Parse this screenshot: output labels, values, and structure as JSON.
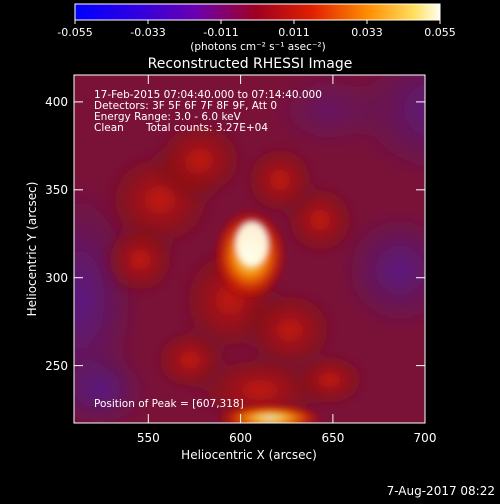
{
  "colorbar": {
    "ticks": [
      "-0.055",
      "-0.033",
      "-0.011",
      "0.011",
      "0.033",
      "0.055"
    ],
    "unit_label": "(photons cm⁻² s⁻¹ asec⁻²)"
  },
  "chart_data": {
    "type": "heatmap",
    "title": "Reconstructed RHESSI Image",
    "xlabel": "Heliocentric X (arcsec)",
    "ylabel": "Heliocentric Y (arcsec)",
    "xlim": [
      510,
      700
    ],
    "ylim": [
      212,
      410
    ],
    "x_ticks": [
      550,
      600,
      650,
      700
    ],
    "y_ticks": [
      250,
      300,
      350,
      400
    ],
    "colorbar_range": [
      -0.055,
      0.055
    ],
    "peak": {
      "x": 607,
      "y": 318
    },
    "colormap": [
      "#0000ff",
      "#6a00d0",
      "#7a1060",
      "#c01010",
      "#ff6a00",
      "#ffd040",
      "#ffffe8"
    ]
  },
  "annotations": {
    "time_range": "17-Feb-2015 07:04:40.000 to 07:14:40.000",
    "detectors": "Detectors: 3F 5F 6F 7F 8F 9F, Att 0",
    "energy": "Energy Range: 3.0 - 6.0 keV",
    "clean": "Clean",
    "counts": "Total counts: 3.27E+04",
    "peak_label": "Position of Peak = [607,318]"
  },
  "footer_date": "7-Aug-2017 08:22"
}
